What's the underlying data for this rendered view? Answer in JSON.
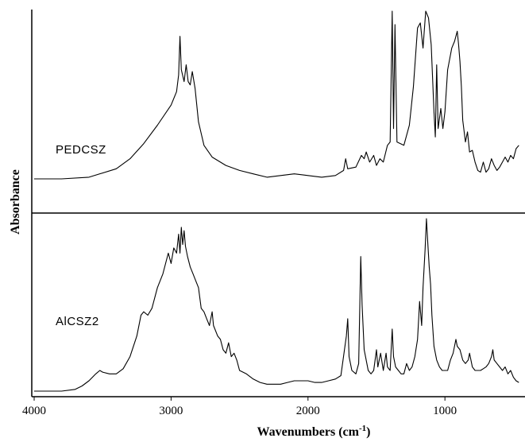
{
  "chart_data": {
    "type": "line",
    "xlabel": "Wavenumbers (cm",
    "xlabel_sup": "-1",
    "xlabel_close": ")",
    "ylabel": "Absorbance",
    "xlim": [
      4000,
      450
    ],
    "x_reversed": true,
    "ticks": [
      {
        "value": 4000,
        "label": "4000"
      },
      {
        "value": 3000,
        "label": "3000"
      },
      {
        "value": 2000,
        "label": "2000"
      },
      {
        "value": 1000,
        "label": "1000"
      }
    ],
    "grid": false,
    "series": [
      {
        "name": "PEDCSZ",
        "panel": "top",
        "points": [
          [
            4000,
            0.0
          ],
          [
            3800,
            0.0
          ],
          [
            3600,
            0.01
          ],
          [
            3400,
            0.06
          ],
          [
            3300,
            0.12
          ],
          [
            3200,
            0.21
          ],
          [
            3100,
            0.32
          ],
          [
            3000,
            0.44
          ],
          [
            2960,
            0.52
          ],
          [
            2945,
            0.62
          ],
          [
            2935,
            0.85
          ],
          [
            2925,
            0.65
          ],
          [
            2905,
            0.58
          ],
          [
            2890,
            0.68
          ],
          [
            2875,
            0.58
          ],
          [
            2860,
            0.56
          ],
          [
            2845,
            0.64
          ],
          [
            2825,
            0.54
          ],
          [
            2800,
            0.34
          ],
          [
            2760,
            0.2
          ],
          [
            2700,
            0.13
          ],
          [
            2600,
            0.08
          ],
          [
            2500,
            0.05
          ],
          [
            2400,
            0.03
          ],
          [
            2300,
            0.01
          ],
          [
            2200,
            0.02
          ],
          [
            2100,
            0.03
          ],
          [
            2000,
            0.02
          ],
          [
            1900,
            0.01
          ],
          [
            1800,
            0.02
          ],
          [
            1740,
            0.05
          ],
          [
            1725,
            0.12
          ],
          [
            1710,
            0.06
          ],
          [
            1650,
            0.07
          ],
          [
            1610,
            0.14
          ],
          [
            1590,
            0.12
          ],
          [
            1575,
            0.16
          ],
          [
            1550,
            0.1
          ],
          [
            1520,
            0.14
          ],
          [
            1500,
            0.08
          ],
          [
            1475,
            0.12
          ],
          [
            1450,
            0.1
          ],
          [
            1420,
            0.2
          ],
          [
            1400,
            0.22
          ],
          [
            1385,
            1.0
          ],
          [
            1375,
            0.3
          ],
          [
            1365,
            0.92
          ],
          [
            1350,
            0.22
          ],
          [
            1300,
            0.2
          ],
          [
            1260,
            0.32
          ],
          [
            1230,
            0.55
          ],
          [
            1200,
            0.9
          ],
          [
            1180,
            0.93
          ],
          [
            1160,
            0.78
          ],
          [
            1140,
            1.0
          ],
          [
            1120,
            0.96
          ],
          [
            1100,
            0.8
          ],
          [
            1080,
            0.4
          ],
          [
            1070,
            0.25
          ],
          [
            1060,
            0.68
          ],
          [
            1050,
            0.3
          ],
          [
            1030,
            0.42
          ],
          [
            1015,
            0.3
          ],
          [
            1000,
            0.4
          ],
          [
            980,
            0.65
          ],
          [
            950,
            0.78
          ],
          [
            930,
            0.82
          ],
          [
            910,
            0.88
          ],
          [
            900,
            0.8
          ],
          [
            890,
            0.7
          ],
          [
            880,
            0.55
          ],
          [
            870,
            0.35
          ],
          [
            850,
            0.22
          ],
          [
            835,
            0.28
          ],
          [
            820,
            0.16
          ],
          [
            800,
            0.17
          ],
          [
            780,
            0.1
          ],
          [
            760,
            0.05
          ],
          [
            740,
            0.04
          ],
          [
            720,
            0.1
          ],
          [
            700,
            0.04
          ],
          [
            680,
            0.06
          ],
          [
            660,
            0.12
          ],
          [
            640,
            0.08
          ],
          [
            620,
            0.05
          ],
          [
            600,
            0.07
          ],
          [
            580,
            0.1
          ],
          [
            560,
            0.13
          ],
          [
            540,
            0.1
          ],
          [
            520,
            0.14
          ],
          [
            500,
            0.12
          ],
          [
            480,
            0.18
          ],
          [
            460,
            0.2
          ]
        ]
      },
      {
        "name": "AlCSZ2",
        "panel": "bottom",
        "points": [
          [
            4000,
            0.0
          ],
          [
            3900,
            0.0
          ],
          [
            3800,
            0.0
          ],
          [
            3700,
            0.01
          ],
          [
            3650,
            0.03
          ],
          [
            3600,
            0.06
          ],
          [
            3550,
            0.1
          ],
          [
            3520,
            0.12
          ],
          [
            3500,
            0.11
          ],
          [
            3450,
            0.1
          ],
          [
            3400,
            0.1
          ],
          [
            3350,
            0.13
          ],
          [
            3300,
            0.2
          ],
          [
            3250,
            0.32
          ],
          [
            3220,
            0.44
          ],
          [
            3200,
            0.46
          ],
          [
            3170,
            0.44
          ],
          [
            3140,
            0.48
          ],
          [
            3100,
            0.6
          ],
          [
            3060,
            0.68
          ],
          [
            3040,
            0.74
          ],
          [
            3020,
            0.8
          ],
          [
            3000,
            0.74
          ],
          [
            2980,
            0.83
          ],
          [
            2960,
            0.8
          ],
          [
            2945,
            0.91
          ],
          [
            2935,
            0.8
          ],
          [
            2925,
            0.95
          ],
          [
            2915,
            0.85
          ],
          [
            2905,
            0.93
          ],
          [
            2895,
            0.84
          ],
          [
            2880,
            0.78
          ],
          [
            2860,
            0.72
          ],
          [
            2840,
            0.68
          ],
          [
            2820,
            0.64
          ],
          [
            2800,
            0.6
          ],
          [
            2780,
            0.48
          ],
          [
            2760,
            0.46
          ],
          [
            2740,
            0.42
          ],
          [
            2720,
            0.38
          ],
          [
            2700,
            0.46
          ],
          [
            2690,
            0.38
          ],
          [
            2660,
            0.32
          ],
          [
            2640,
            0.3
          ],
          [
            2620,
            0.24
          ],
          [
            2600,
            0.22
          ],
          [
            2580,
            0.28
          ],
          [
            2560,
            0.2
          ],
          [
            2540,
            0.22
          ],
          [
            2520,
            0.18
          ],
          [
            2500,
            0.12
          ],
          [
            2450,
            0.1
          ],
          [
            2400,
            0.07
          ],
          [
            2350,
            0.05
          ],
          [
            2300,
            0.04
          ],
          [
            2250,
            0.04
          ],
          [
            2200,
            0.04
          ],
          [
            2150,
            0.05
          ],
          [
            2100,
            0.06
          ],
          [
            2050,
            0.06
          ],
          [
            2000,
            0.06
          ],
          [
            1950,
            0.05
          ],
          [
            1900,
            0.05
          ],
          [
            1850,
            0.06
          ],
          [
            1800,
            0.07
          ],
          [
            1760,
            0.09
          ],
          [
            1720,
            0.32
          ],
          [
            1710,
            0.42
          ],
          [
            1700,
            0.2
          ],
          [
            1680,
            0.12
          ],
          [
            1650,
            0.1
          ],
          [
            1630,
            0.16
          ],
          [
            1615,
            0.78
          ],
          [
            1605,
            0.5
          ],
          [
            1590,
            0.24
          ],
          [
            1560,
            0.12
          ],
          [
            1540,
            0.1
          ],
          [
            1520,
            0.12
          ],
          [
            1500,
            0.24
          ],
          [
            1490,
            0.14
          ],
          [
            1470,
            0.22
          ],
          [
            1450,
            0.12
          ],
          [
            1430,
            0.22
          ],
          [
            1420,
            0.14
          ],
          [
            1400,
            0.12
          ],
          [
            1385,
            0.36
          ],
          [
            1375,
            0.2
          ],
          [
            1360,
            0.14
          ],
          [
            1340,
            0.12
          ],
          [
            1320,
            0.1
          ],
          [
            1300,
            0.1
          ],
          [
            1280,
            0.16
          ],
          [
            1260,
            0.12
          ],
          [
            1240,
            0.14
          ],
          [
            1220,
            0.2
          ],
          [
            1200,
            0.3
          ],
          [
            1185,
            0.52
          ],
          [
            1170,
            0.38
          ],
          [
            1160,
            0.6
          ],
          [
            1145,
            0.82
          ],
          [
            1135,
            1.0
          ],
          [
            1125,
            0.86
          ],
          [
            1115,
            0.72
          ],
          [
            1105,
            0.62
          ],
          [
            1095,
            0.44
          ],
          [
            1080,
            0.26
          ],
          [
            1060,
            0.18
          ],
          [
            1040,
            0.14
          ],
          [
            1020,
            0.12
          ],
          [
            1000,
            0.12
          ],
          [
            980,
            0.12
          ],
          [
            960,
            0.18
          ],
          [
            940,
            0.22
          ],
          [
            920,
            0.3
          ],
          [
            910,
            0.26
          ],
          [
            890,
            0.24
          ],
          [
            870,
            0.18
          ],
          [
            850,
            0.16
          ],
          [
            830,
            0.18
          ],
          [
            820,
            0.22
          ],
          [
            800,
            0.14
          ],
          [
            780,
            0.12
          ],
          [
            760,
            0.12
          ],
          [
            740,
            0.12
          ],
          [
            720,
            0.13
          ],
          [
            700,
            0.14
          ],
          [
            680,
            0.16
          ],
          [
            660,
            0.2
          ],
          [
            650,
            0.24
          ],
          [
            640,
            0.18
          ],
          [
            620,
            0.16
          ],
          [
            600,
            0.14
          ],
          [
            580,
            0.12
          ],
          [
            560,
            0.14
          ],
          [
            540,
            0.1
          ],
          [
            520,
            0.12
          ],
          [
            500,
            0.08
          ],
          [
            480,
            0.06
          ],
          [
            460,
            0.05
          ]
        ]
      }
    ]
  }
}
